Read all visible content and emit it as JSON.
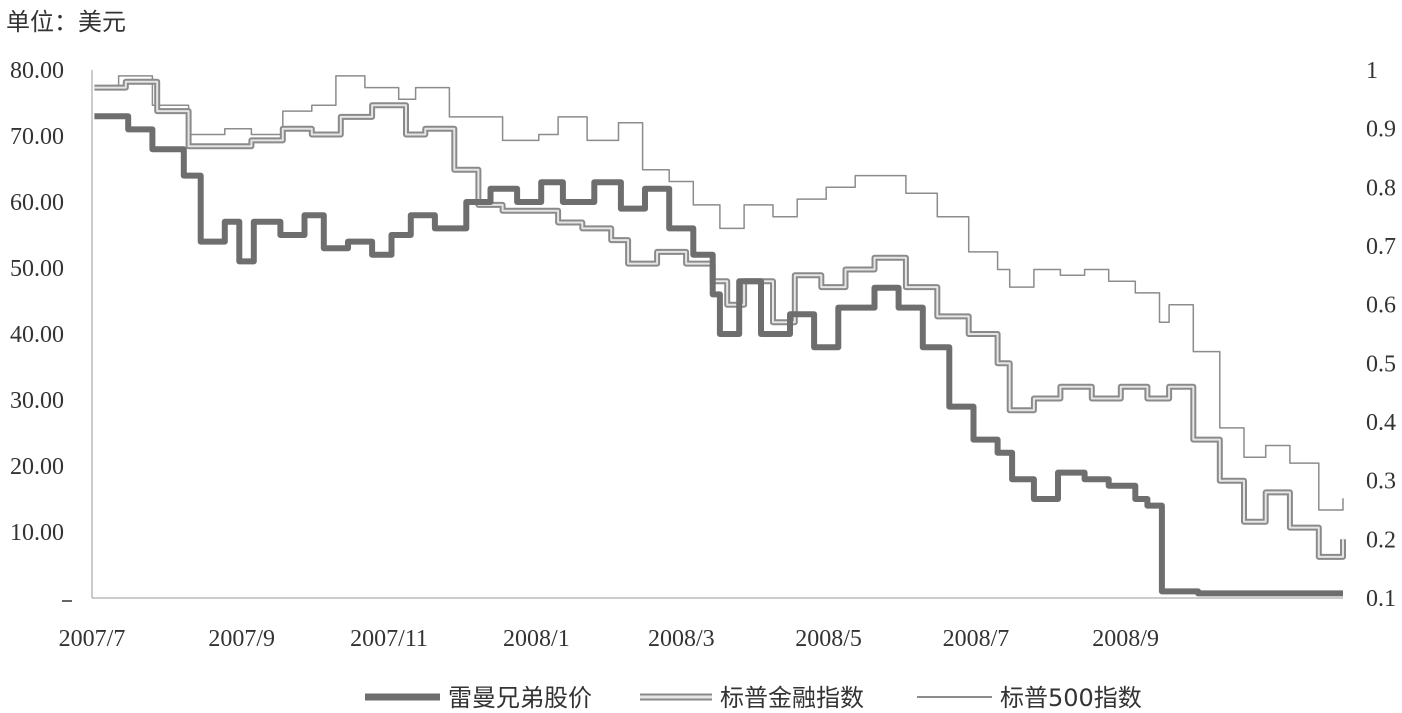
{
  "unit_label": "单位：美元",
  "colors": {
    "lehman": "#6e6e6e",
    "financials_outer": "#8a8a8a",
    "financials_inner": "#e6e6e6",
    "sp500": "#8c8c8c",
    "axis": "#9a9a9a"
  },
  "chart_data": {
    "type": "line",
    "y_left": {
      "ticks": [
        "80.00",
        "70.00",
        "60.00",
        "50.00",
        "40.00",
        "30.00",
        "20.00",
        "10.00"
      ],
      "range": [
        0,
        80
      ]
    },
    "y_right": {
      "ticks": [
        "1",
        "0.9",
        "0.8",
        "0.7",
        "0.6",
        "0.5",
        "0.4",
        "0.3",
        "0.2",
        "0.1"
      ],
      "range": [
        0.1,
        1
      ]
    },
    "x_ticks": [
      "2007/7",
      "2007/9",
      "2007/11",
      "2008/1",
      "2008/3",
      "2008/5",
      "2008/7",
      "2008/9"
    ],
    "x_range": [
      "2007-07-01",
      "2008-11-30"
    ],
    "grid": false,
    "legend_position": "bottom",
    "series": [
      {
        "name": "雷曼兄弟股价",
        "axis": "left",
        "style": "thick",
        "points": [
          [
            "2007-07-02",
            73
          ],
          [
            "2007-07-16",
            71
          ],
          [
            "2007-07-26",
            68
          ],
          [
            "2007-08-08",
            64
          ],
          [
            "2007-08-15",
            54
          ],
          [
            "2007-08-25",
            57
          ],
          [
            "2007-08-31",
            51
          ],
          [
            "2007-09-06",
            57
          ],
          [
            "2007-09-17",
            55
          ],
          [
            "2007-09-27",
            58
          ],
          [
            "2007-10-05",
            53
          ],
          [
            "2007-10-15",
            54
          ],
          [
            "2007-10-25",
            52
          ],
          [
            "2007-11-02",
            55
          ],
          [
            "2007-11-10",
            58
          ],
          [
            "2007-11-20",
            56
          ],
          [
            "2007-12-03",
            60
          ],
          [
            "2007-12-13",
            62
          ],
          [
            "2007-12-24",
            60
          ],
          [
            "2008-01-03",
            63
          ],
          [
            "2008-01-12",
            60
          ],
          [
            "2008-01-25",
            63
          ],
          [
            "2008-02-05",
            59
          ],
          [
            "2008-02-15",
            62
          ],
          [
            "2008-02-25",
            56
          ],
          [
            "2008-03-06",
            52
          ],
          [
            "2008-03-14",
            46
          ],
          [
            "2008-03-17",
            40
          ],
          [
            "2008-03-25",
            48
          ],
          [
            "2008-04-03",
            40
          ],
          [
            "2008-04-15",
            43
          ],
          [
            "2008-04-25",
            38
          ],
          [
            "2008-05-05",
            44
          ],
          [
            "2008-05-20",
            47
          ],
          [
            "2008-05-30",
            44
          ],
          [
            "2008-06-09",
            38
          ],
          [
            "2008-06-20",
            29
          ],
          [
            "2008-06-30",
            24
          ],
          [
            "2008-07-10",
            22
          ],
          [
            "2008-07-16",
            18
          ],
          [
            "2008-07-25",
            15
          ],
          [
            "2008-08-04",
            19
          ],
          [
            "2008-08-15",
            18
          ],
          [
            "2008-08-25",
            17
          ],
          [
            "2008-09-05",
            15
          ],
          [
            "2008-09-10",
            14
          ],
          [
            "2008-09-16",
            1
          ],
          [
            "2008-10-01",
            0.7
          ],
          [
            "2008-11-30",
            0.7
          ]
        ]
      },
      {
        "name": "标普金融指数",
        "axis": "right",
        "style": "double",
        "points": [
          [
            "2007-07-02",
            0.97
          ],
          [
            "2007-07-15",
            0.98
          ],
          [
            "2007-07-28",
            0.93
          ],
          [
            "2007-08-10",
            0.87
          ],
          [
            "2007-08-25",
            0.87
          ],
          [
            "2007-09-05",
            0.88
          ],
          [
            "2007-09-18",
            0.9
          ],
          [
            "2007-09-30",
            0.89
          ],
          [
            "2007-10-12",
            0.92
          ],
          [
            "2007-10-25",
            0.94
          ],
          [
            "2007-11-08",
            0.89
          ],
          [
            "2007-11-16",
            0.9
          ],
          [
            "2007-11-28",
            0.83
          ],
          [
            "2007-12-08",
            0.77
          ],
          [
            "2007-12-18",
            0.76
          ],
          [
            "2007-12-30",
            0.76
          ],
          [
            "2008-01-10",
            0.74
          ],
          [
            "2008-01-20",
            0.73
          ],
          [
            "2008-02-01",
            0.71
          ],
          [
            "2008-02-08",
            0.67
          ],
          [
            "2008-02-20",
            0.69
          ],
          [
            "2008-03-03",
            0.67
          ],
          [
            "2008-03-14",
            0.64
          ],
          [
            "2008-03-20",
            0.6
          ],
          [
            "2008-03-27",
            0.64
          ],
          [
            "2008-04-08",
            0.57
          ],
          [
            "2008-04-17",
            0.65
          ],
          [
            "2008-04-28",
            0.63
          ],
          [
            "2008-05-08",
            0.66
          ],
          [
            "2008-05-20",
            0.68
          ],
          [
            "2008-06-02",
            0.63
          ],
          [
            "2008-06-15",
            0.58
          ],
          [
            "2008-06-28",
            0.55
          ],
          [
            "2008-07-10",
            0.5
          ],
          [
            "2008-07-15",
            0.42
          ],
          [
            "2008-07-25",
            0.44
          ],
          [
            "2008-08-05",
            0.46
          ],
          [
            "2008-08-18",
            0.44
          ],
          [
            "2008-08-30",
            0.46
          ],
          [
            "2008-09-10",
            0.44
          ],
          [
            "2008-09-19",
            0.46
          ],
          [
            "2008-09-29",
            0.37
          ],
          [
            "2008-10-10",
            0.3
          ],
          [
            "2008-10-20",
            0.23
          ],
          [
            "2008-10-29",
            0.28
          ],
          [
            "2008-11-08",
            0.22
          ],
          [
            "2008-11-20",
            0.17
          ],
          [
            "2008-11-30",
            0.2
          ]
        ]
      },
      {
        "name": "标普500指数",
        "axis": "right",
        "style": "thin",
        "points": [
          [
            "2007-07-02",
            0.97
          ],
          [
            "2007-07-12",
            0.99
          ],
          [
            "2007-07-26",
            0.94
          ],
          [
            "2007-08-10",
            0.89
          ],
          [
            "2007-08-25",
            0.9
          ],
          [
            "2007-09-05",
            0.89
          ],
          [
            "2007-09-18",
            0.93
          ],
          [
            "2007-09-30",
            0.94
          ],
          [
            "2007-10-10",
            0.99
          ],
          [
            "2007-10-22",
            0.97
          ],
          [
            "2007-11-05",
            0.95
          ],
          [
            "2007-11-12",
            0.97
          ],
          [
            "2007-11-26",
            0.92
          ],
          [
            "2007-12-08",
            0.92
          ],
          [
            "2007-12-18",
            0.88
          ],
          [
            "2008-01-02",
            0.89
          ],
          [
            "2008-01-10",
            0.92
          ],
          [
            "2008-01-22",
            0.88
          ],
          [
            "2008-02-04",
            0.91
          ],
          [
            "2008-02-14",
            0.83
          ],
          [
            "2008-02-25",
            0.81
          ],
          [
            "2008-03-06",
            0.77
          ],
          [
            "2008-03-17",
            0.73
          ],
          [
            "2008-03-27",
            0.77
          ],
          [
            "2008-04-08",
            0.75
          ],
          [
            "2008-04-18",
            0.78
          ],
          [
            "2008-04-30",
            0.8
          ],
          [
            "2008-05-12",
            0.82
          ],
          [
            "2008-05-19",
            0.82
          ],
          [
            "2008-06-02",
            0.79
          ],
          [
            "2008-06-15",
            0.75
          ],
          [
            "2008-06-28",
            0.69
          ],
          [
            "2008-07-10",
            0.66
          ],
          [
            "2008-07-15",
            0.63
          ],
          [
            "2008-07-25",
            0.66
          ],
          [
            "2008-08-05",
            0.65
          ],
          [
            "2008-08-15",
            0.66
          ],
          [
            "2008-08-25",
            0.64
          ],
          [
            "2008-09-05",
            0.62
          ],
          [
            "2008-09-15",
            0.57
          ],
          [
            "2008-09-19",
            0.6
          ],
          [
            "2008-09-29",
            0.52
          ],
          [
            "2008-10-10",
            0.39
          ],
          [
            "2008-10-20",
            0.34
          ],
          [
            "2008-10-29",
            0.36
          ],
          [
            "2008-11-08",
            0.33
          ],
          [
            "2008-11-20",
            0.25
          ],
          [
            "2008-11-30",
            0.27
          ]
        ]
      }
    ]
  }
}
